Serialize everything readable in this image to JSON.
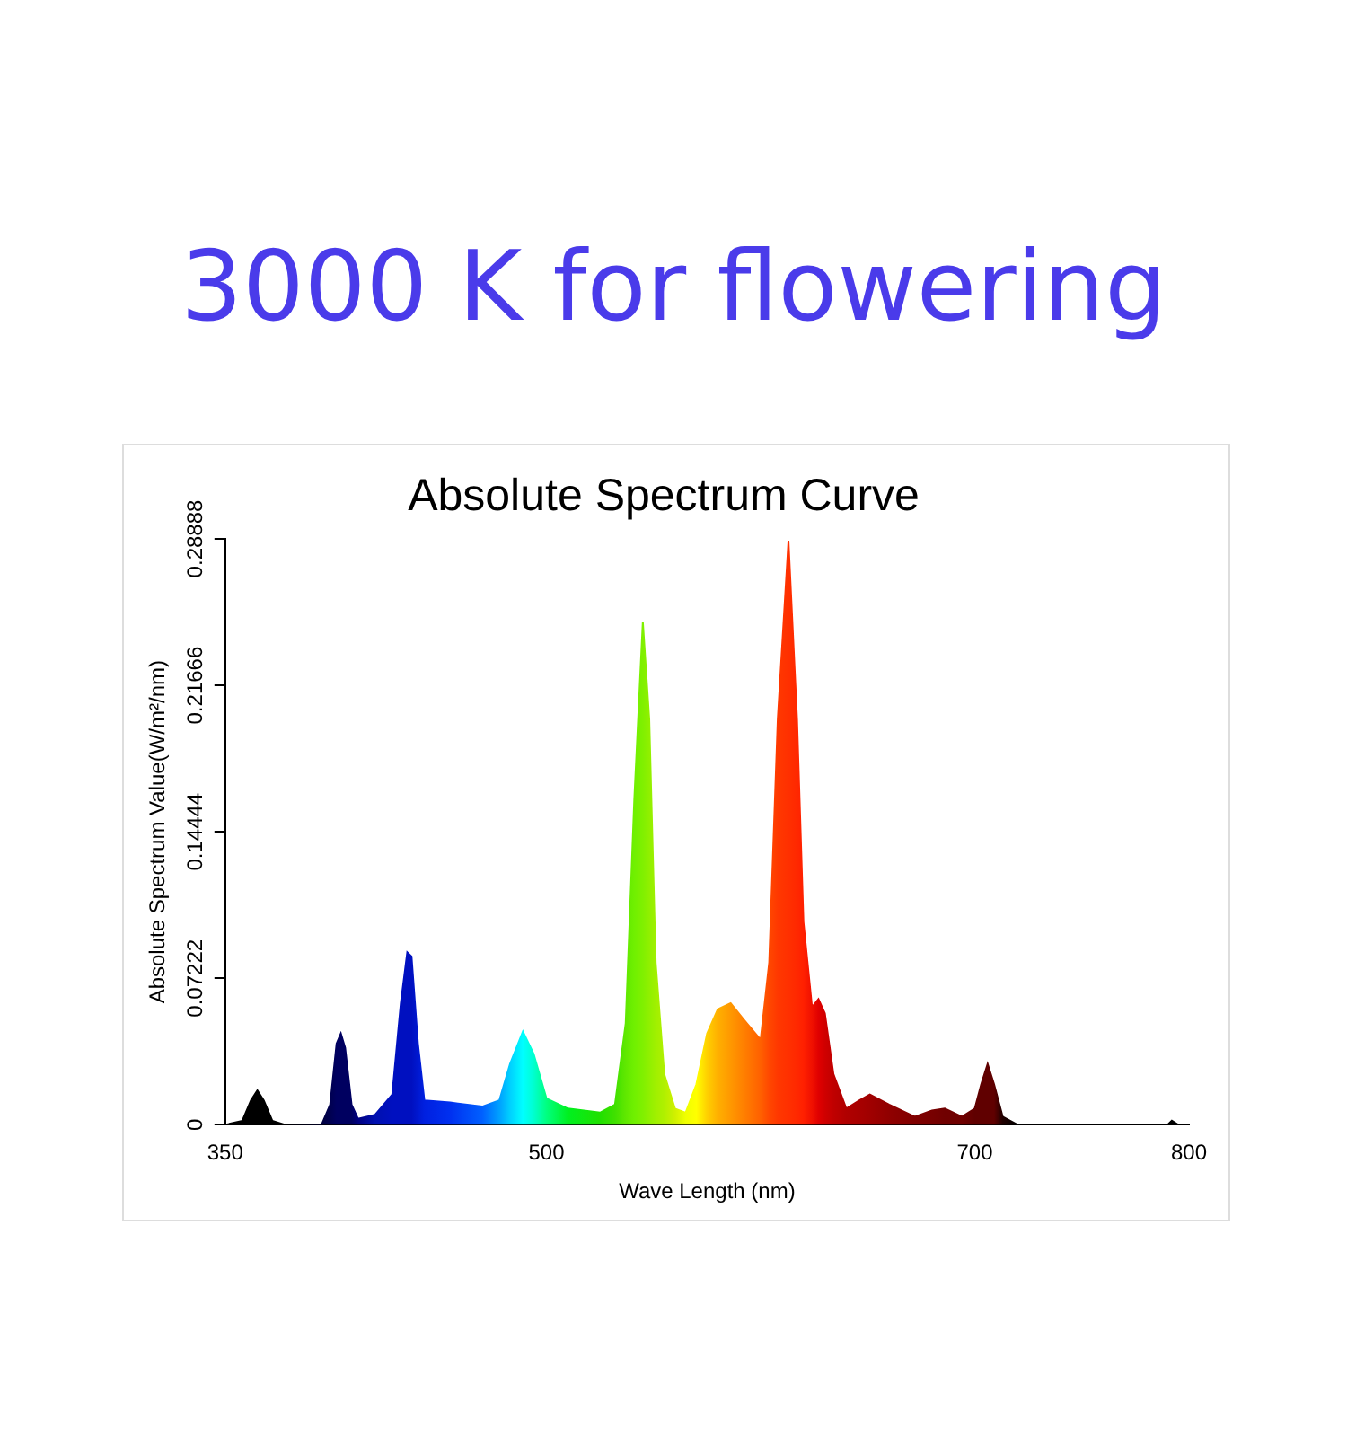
{
  "chart_data": {
    "type": "area",
    "title": "3000 K for flowering",
    "subtitle": "Absolute Spectrum Curve",
    "xlabel": "Wave Length (nm)",
    "ylabel": "Absolute Spectrum Value(W/m²/nm)",
    "x": [
      350,
      358,
      362,
      365,
      368,
      372,
      378,
      395,
      399,
      402,
      404,
      406,
      409,
      412,
      420,
      428,
      432,
      435,
      437,
      440,
      443,
      455,
      470,
      478,
      483,
      489,
      494,
      500,
      510,
      525,
      532,
      537,
      541,
      545,
      548,
      551,
      555,
      560,
      565,
      570,
      575,
      580,
      586,
      592,
      600,
      604,
      608,
      613,
      617,
      620,
      624,
      627,
      630,
      634,
      640,
      646,
      651,
      660,
      672,
      680,
      686,
      694,
      700,
      703,
      706,
      709,
      713,
      720,
      790,
      792,
      795,
      800
    ],
    "values": [
      0,
      0.002,
      0.012,
      0.017,
      0.012,
      0.002,
      0,
      0,
      0.01,
      0.04,
      0.045,
      0.038,
      0.01,
      0.003,
      0.005,
      0.015,
      0.06,
      0.085,
      0.083,
      0.04,
      0.012,
      0.011,
      0.009,
      0.012,
      0.03,
      0.046,
      0.035,
      0.013,
      0.008,
      0.006,
      0.01,
      0.05,
      0.16,
      0.248,
      0.2,
      0.08,
      0.025,
      0.008,
      0.006,
      0.02,
      0.045,
      0.057,
      0.06,
      0.052,
      0.042,
      0.08,
      0.2,
      0.288,
      0.2,
      0.1,
      0.058,
      0.062,
      0.055,
      0.025,
      0.008,
      0.012,
      0.015,
      0.01,
      0.004,
      0.007,
      0.008,
      0.004,
      0.008,
      0.02,
      0.03,
      0.02,
      0.004,
      0,
      0,
      0.002,
      0,
      0
    ],
    "colors": [
      "#000000",
      "#000000",
      "#000000",
      "#000000",
      "#000000",
      "#000000",
      "#000000",
      "#000040",
      "#000050",
      "#000060",
      "#000060",
      "#000060",
      "#000060",
      "#000080",
      "#0010b0",
      "#0010c0",
      "#0010c0",
      "#0010c0",
      "#0010c0",
      "#0018d0",
      "#0020e0",
      "#0030f0",
      "#0060ff",
      "#00a0ff",
      "#00d0ff",
      "#00ffff",
      "#00ffd0",
      "#00ff80",
      "#00f020",
      "#20e000",
      "#40e000",
      "#60e800",
      "#70f000",
      "#80f000",
      "#90f000",
      "#a0f000",
      "#b0f000",
      "#d0f000",
      "#f0ff00",
      "#ffff00",
      "#ffd000",
      "#ffb000",
      "#ff9800",
      "#ff8000",
      "#ff6000",
      "#ff4800",
      "#ff3800",
      "#ff3000",
      "#ff2800",
      "#ff2000",
      "#f01000",
      "#e00000",
      "#d00000",
      "#c00000",
      "#b00000",
      "#a80000",
      "#a00000",
      "#900000",
      "#800000",
      "#780000",
      "#700000",
      "#700000",
      "#600000",
      "#600000",
      "#600000",
      "#600000",
      "#200000",
      "#000000",
      "#000000",
      "#000000",
      "#000000",
      "#000000"
    ],
    "xlim": [
      350,
      800
    ],
    "xticks": [
      350,
      500,
      700,
      800
    ],
    "ylim": [
      0,
      0.28888
    ],
    "yticks": [
      0,
      0.07222,
      0.14444,
      0.21666,
      0.28888
    ],
    "grid": false,
    "legend": false
  }
}
